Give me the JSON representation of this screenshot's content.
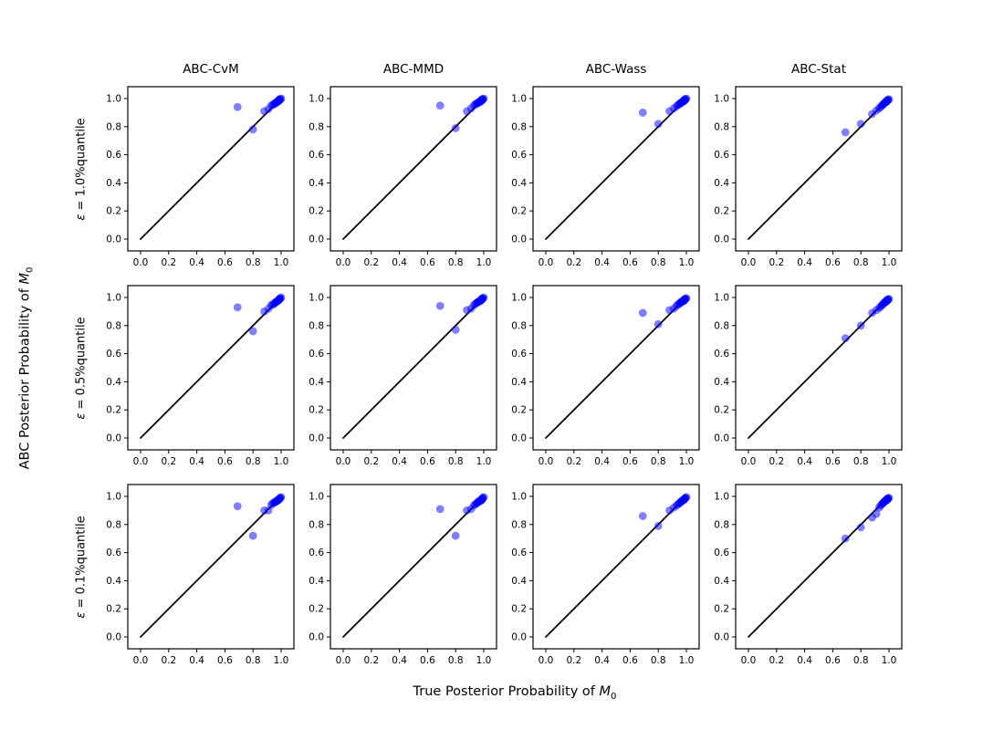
{
  "labels": {
    "ylabel_prefix": "ABC Posterior Probability of ",
    "ylabel_var": "M",
    "ylabel_sub": "0",
    "xlabel_prefix": "True Posterior Probability of ",
    "xlabel_var": "M",
    "xlabel_sub": "0"
  },
  "chart_data": {
    "type": "scatter",
    "description": "3x4 grid of calibration scatter plots: ABC posterior probability vs true posterior probability of model M0, with identity line",
    "col_titles": [
      "ABC-CvM",
      "ABC-MMD",
      "ABC-Wass",
      "ABC-Stat"
    ],
    "rows": [
      {
        "eps_sym": "ε",
        "eps_rest": " = 1.0%quantile"
      },
      {
        "eps_sym": "ε",
        "eps_rest": " = 0.5%quantile"
      },
      {
        "eps_sym": "ε",
        "eps_rest": " = 0.1%quantile"
      }
    ],
    "axes": {
      "xlim": [
        -0.09,
        1.09
      ],
      "ylim": [
        -0.09,
        1.09
      ],
      "ticks": [
        0.0,
        0.2,
        0.4,
        0.6,
        0.8,
        1.0
      ],
      "tick_labels": [
        "0.0",
        "0.2",
        "0.4",
        "0.6",
        "0.8",
        "1.0"
      ],
      "grid": false
    },
    "identity_line": {
      "x": [
        0,
        1
      ],
      "y": [
        0,
        1
      ],
      "color": "#000000",
      "width": 1.7
    },
    "marker": {
      "color": "#0000ff",
      "alpha": 0.5,
      "radius": 4.4
    },
    "x_true": [
      0.69,
      0.8,
      0.88,
      0.91,
      0.93,
      0.94,
      0.95,
      0.955,
      0.96,
      0.965,
      0.97,
      0.975,
      0.98,
      0.98,
      0.985,
      0.985,
      0.99,
      0.99,
      0.995,
      1.0
    ],
    "panels": [
      {
        "row": 0,
        "col": 0,
        "y": [
          0.94,
          0.78,
          0.91,
          0.925,
          0.95,
          0.955,
          0.96,
          0.965,
          0.97,
          0.97,
          0.975,
          0.98,
          0.98,
          0.985,
          0.985,
          0.99,
          0.99,
          0.995,
          0.995,
          1.0
        ]
      },
      {
        "row": 0,
        "col": 1,
        "y": [
          0.95,
          0.79,
          0.91,
          0.93,
          0.95,
          0.96,
          0.965,
          0.965,
          0.97,
          0.975,
          0.975,
          0.98,
          0.98,
          0.985,
          0.99,
          0.99,
          0.99,
          0.995,
          0.995,
          1.0
        ]
      },
      {
        "row": 0,
        "col": 2,
        "y": [
          0.9,
          0.82,
          0.91,
          0.93,
          0.945,
          0.955,
          0.96,
          0.965,
          0.97,
          0.97,
          0.975,
          0.98,
          0.98,
          0.985,
          0.985,
          0.99,
          0.99,
          0.995,
          0.995,
          1.0
        ]
      },
      {
        "row": 0,
        "col": 3,
        "y": [
          0.76,
          0.82,
          0.89,
          0.915,
          0.93,
          0.94,
          0.95,
          0.955,
          0.96,
          0.965,
          0.97,
          0.975,
          0.975,
          0.98,
          0.98,
          0.985,
          0.985,
          0.99,
          0.99,
          0.995
        ]
      },
      {
        "row": 1,
        "col": 0,
        "y": [
          0.93,
          0.76,
          0.9,
          0.92,
          0.945,
          0.95,
          0.955,
          0.96,
          0.965,
          0.97,
          0.97,
          0.975,
          0.98,
          0.98,
          0.985,
          0.985,
          0.99,
          0.99,
          0.995,
          1.0
        ]
      },
      {
        "row": 1,
        "col": 1,
        "y": [
          0.94,
          0.77,
          0.91,
          0.92,
          0.945,
          0.955,
          0.96,
          0.965,
          0.97,
          0.97,
          0.975,
          0.975,
          0.98,
          0.98,
          0.985,
          0.99,
          0.99,
          0.99,
          0.995,
          1.0
        ]
      },
      {
        "row": 1,
        "col": 2,
        "y": [
          0.89,
          0.81,
          0.91,
          0.92,
          0.94,
          0.95,
          0.955,
          0.96,
          0.965,
          0.97,
          0.97,
          0.975,
          0.975,
          0.98,
          0.98,
          0.985,
          0.985,
          0.99,
          0.99,
          0.995
        ]
      },
      {
        "row": 1,
        "col": 3,
        "y": [
          0.71,
          0.8,
          0.89,
          0.91,
          0.925,
          0.935,
          0.945,
          0.95,
          0.955,
          0.96,
          0.965,
          0.97,
          0.97,
          0.975,
          0.975,
          0.98,
          0.98,
          0.985,
          0.985,
          0.99
        ]
      },
      {
        "row": 2,
        "col": 0,
        "y": [
          0.93,
          0.72,
          0.9,
          0.9,
          0.94,
          0.95,
          0.955,
          0.96,
          0.96,
          0.965,
          0.97,
          0.97,
          0.975,
          0.975,
          0.98,
          0.98,
          0.985,
          0.985,
          0.99,
          0.995
        ]
      },
      {
        "row": 2,
        "col": 1,
        "y": [
          0.91,
          0.72,
          0.9,
          0.91,
          0.935,
          0.945,
          0.95,
          0.955,
          0.96,
          0.965,
          0.965,
          0.97,
          0.97,
          0.975,
          0.975,
          0.98,
          0.98,
          0.985,
          0.99,
          0.995
        ]
      },
      {
        "row": 2,
        "col": 2,
        "y": [
          0.86,
          0.79,
          0.9,
          0.92,
          0.935,
          0.945,
          0.95,
          0.955,
          0.96,
          0.965,
          0.97,
          0.97,
          0.975,
          0.975,
          0.98,
          0.98,
          0.985,
          0.985,
          0.99,
          0.995
        ]
      },
      {
        "row": 2,
        "col": 3,
        "y": [
          0.7,
          0.78,
          0.85,
          0.875,
          0.92,
          0.935,
          0.945,
          0.95,
          0.955,
          0.96,
          0.965,
          0.97,
          0.97,
          0.975,
          0.975,
          0.98,
          0.98,
          0.985,
          0.985,
          0.99
        ]
      }
    ]
  }
}
